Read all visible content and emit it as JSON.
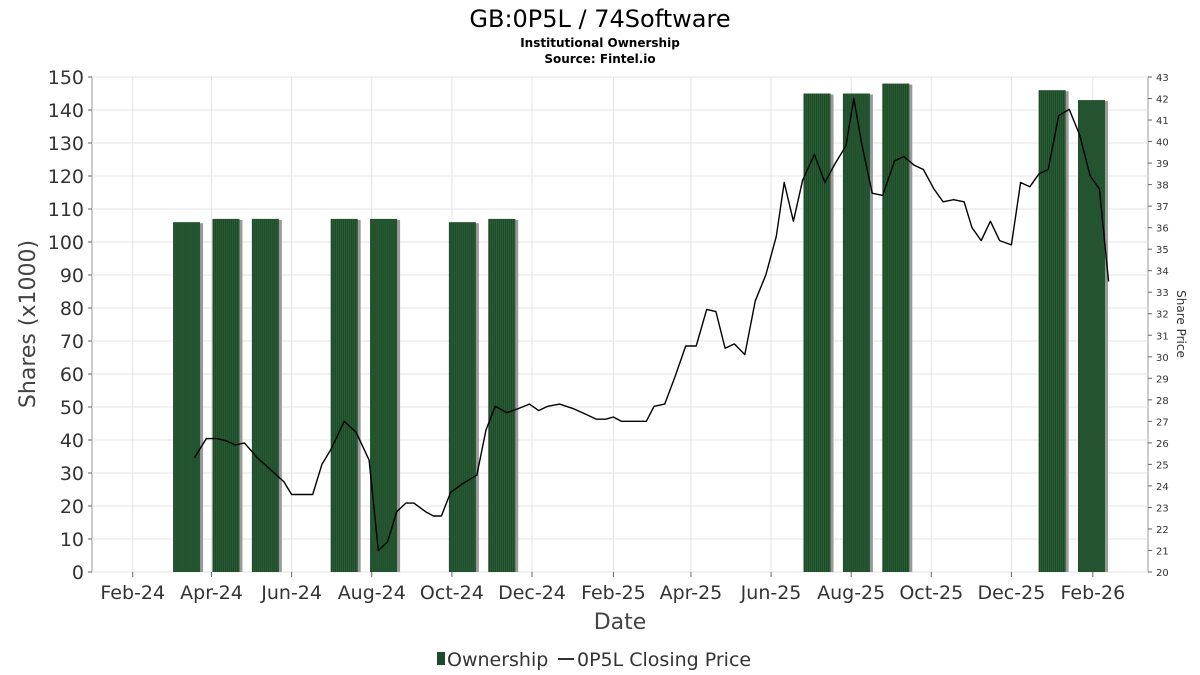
{
  "chart_data": {
    "type": "bar",
    "title": "GB:0P5L / 74Software",
    "subtitle_lines": [
      "Institutional Ownership",
      "Source: Fintel.io"
    ],
    "xlabel": "Date",
    "ylabel": "Shares (x1000)",
    "y2label": "Share Price",
    "ylim": [
      0,
      150
    ],
    "y2lim": [
      20,
      43
    ],
    "grid": true,
    "legend_position": "bottom",
    "x_tick_labels": [
      {
        "label": "Feb-24",
        "date": "2024-02-01"
      },
      {
        "label": "Apr-24",
        "date": "2024-04-01"
      },
      {
        "label": "Jun-24",
        "date": "2024-06-01"
      },
      {
        "label": "Aug-24",
        "date": "2024-08-01"
      },
      {
        "label": "Oct-24",
        "date": "2024-10-01"
      },
      {
        "label": "Dec-24",
        "date": "2024-12-01"
      },
      {
        "label": "Feb-25",
        "date": "2025-02-01"
      },
      {
        "label": "Apr-25",
        "date": "2025-04-01"
      },
      {
        "label": "Jun-25",
        "date": "2025-06-01"
      },
      {
        "label": "Aug-25",
        "date": "2025-08-01"
      },
      {
        "label": "Oct-25",
        "date": "2025-10-01"
      },
      {
        "label": "Dec-25",
        "date": "2025-12-01"
      },
      {
        "label": "Feb-26",
        "date": "2026-02-01"
      }
    ],
    "y_ticks": [
      0,
      10,
      20,
      30,
      40,
      50,
      60,
      70,
      80,
      90,
      100,
      110,
      120,
      130,
      140,
      150
    ],
    "y2_ticks": [
      20,
      21,
      22,
      23,
      24,
      25,
      26,
      27,
      28,
      29,
      30,
      31,
      32,
      33,
      34,
      35,
      36,
      37,
      38,
      39,
      40,
      41,
      42,
      43
    ],
    "series": [
      {
        "name": "Ownership",
        "type": "bar",
        "color": "#1f4a2a",
        "points": [
          {
            "date": "2024-03-13",
            "value": 106
          },
          {
            "date": "2024-04-12",
            "value": 107
          },
          {
            "date": "2024-05-12",
            "value": 107
          },
          {
            "date": "2024-07-11",
            "value": 107
          },
          {
            "date": "2024-08-10",
            "value": 107
          },
          {
            "date": "2024-10-09",
            "value": 106
          },
          {
            "date": "2024-11-08",
            "value": 107
          },
          {
            "date": "2025-07-06",
            "value": 145
          },
          {
            "date": "2025-08-05",
            "value": 145
          },
          {
            "date": "2025-09-04",
            "value": 148
          },
          {
            "date": "2026-01-01",
            "value": 146
          },
          {
            "date": "2026-01-31",
            "value": 143
          }
        ]
      },
      {
        "name": "0P5L Closing Price",
        "type": "line",
        "color": "#000000",
        "points": [
          {
            "date": "2024-03-19",
            "value": 25.3
          },
          {
            "date": "2024-03-28",
            "value": 26.2
          },
          {
            "date": "2024-04-05",
            "value": 26.2
          },
          {
            "date": "2024-04-12",
            "value": 26.1
          },
          {
            "date": "2024-04-19",
            "value": 25.9
          },
          {
            "date": "2024-04-26",
            "value": 26.0
          },
          {
            "date": "2024-05-06",
            "value": 25.3
          },
          {
            "date": "2024-05-17",
            "value": 24.7
          },
          {
            "date": "2024-05-26",
            "value": 24.2
          },
          {
            "date": "2024-06-01",
            "value": 23.6
          },
          {
            "date": "2024-06-15",
            "value": 23.6
          },
          {
            "date": "2024-06-17",
            "value": 23.6
          },
          {
            "date": "2024-06-24",
            "value": 25.0
          },
          {
            "date": "2024-07-01",
            "value": 25.7
          },
          {
            "date": "2024-07-11",
            "value": 27.0
          },
          {
            "date": "2024-07-20",
            "value": 26.5
          },
          {
            "date": "2024-07-30",
            "value": 25.2
          },
          {
            "date": "2024-08-06",
            "value": 21.0
          },
          {
            "date": "2024-08-13",
            "value": 21.4
          },
          {
            "date": "2024-08-20",
            "value": 22.8
          },
          {
            "date": "2024-08-27",
            "value": 23.2
          },
          {
            "date": "2024-09-02",
            "value": 23.2
          },
          {
            "date": "2024-09-11",
            "value": 22.8
          },
          {
            "date": "2024-09-17",
            "value": 22.6
          },
          {
            "date": "2024-09-23",
            "value": 22.6
          },
          {
            "date": "2024-09-30",
            "value": 23.7
          },
          {
            "date": "2024-10-09",
            "value": 24.1
          },
          {
            "date": "2024-10-20",
            "value": 24.5
          },
          {
            "date": "2024-10-27",
            "value": 26.6
          },
          {
            "date": "2024-11-03",
            "value": 27.7
          },
          {
            "date": "2024-11-12",
            "value": 27.4
          },
          {
            "date": "2024-11-21",
            "value": 27.6
          },
          {
            "date": "2024-11-29",
            "value": 27.8
          },
          {
            "date": "2024-12-06",
            "value": 27.5
          },
          {
            "date": "2024-12-13",
            "value": 27.7
          },
          {
            "date": "2024-12-22",
            "value": 27.8
          },
          {
            "date": "2025-01-01",
            "value": 27.6
          },
          {
            "date": "2025-01-12",
            "value": 27.3
          },
          {
            "date": "2025-01-19",
            "value": 27.1
          },
          {
            "date": "2025-01-26",
            "value": 27.1
          },
          {
            "date": "2025-02-01",
            "value": 27.2
          },
          {
            "date": "2025-02-07",
            "value": 27.0
          },
          {
            "date": "2025-02-15",
            "value": 27.0
          },
          {
            "date": "2025-02-26",
            "value": 27.0
          },
          {
            "date": "2025-03-04",
            "value": 27.7
          },
          {
            "date": "2025-03-12",
            "value": 27.8
          },
          {
            "date": "2025-03-20",
            "value": 29.1
          },
          {
            "date": "2025-03-28",
            "value": 30.5
          },
          {
            "date": "2025-04-05",
            "value": 30.5
          },
          {
            "date": "2025-04-13",
            "value": 32.2
          },
          {
            "date": "2025-04-20",
            "value": 32.1
          },
          {
            "date": "2025-04-27",
            "value": 30.4
          },
          {
            "date": "2025-05-04",
            "value": 30.6
          },
          {
            "date": "2025-05-12",
            "value": 30.1
          },
          {
            "date": "2025-05-20",
            "value": 32.6
          },
          {
            "date": "2025-05-28",
            "value": 33.8
          },
          {
            "date": "2025-06-05",
            "value": 35.6
          },
          {
            "date": "2025-06-11",
            "value": 38.1
          },
          {
            "date": "2025-06-18",
            "value": 36.3
          },
          {
            "date": "2025-06-25",
            "value": 38.2
          },
          {
            "date": "2025-07-04",
            "value": 39.4
          },
          {
            "date": "2025-07-12",
            "value": 38.1
          },
          {
            "date": "2025-07-20",
            "value": 39.0
          },
          {
            "date": "2025-07-28",
            "value": 39.8
          },
          {
            "date": "2025-08-03",
            "value": 42.0
          },
          {
            "date": "2025-08-09",
            "value": 39.9
          },
          {
            "date": "2025-08-17",
            "value": 37.6
          },
          {
            "date": "2025-08-25",
            "value": 37.5
          },
          {
            "date": "2025-09-03",
            "value": 39.1
          },
          {
            "date": "2025-09-10",
            "value": 39.3
          },
          {
            "date": "2025-09-18",
            "value": 38.9
          },
          {
            "date": "2025-09-25",
            "value": 38.7
          },
          {
            "date": "2025-10-03",
            "value": 37.8
          },
          {
            "date": "2025-10-10",
            "value": 37.2
          },
          {
            "date": "2025-10-18",
            "value": 37.3
          },
          {
            "date": "2025-10-26",
            "value": 37.2
          },
          {
            "date": "2025-11-01",
            "value": 36.0
          },
          {
            "date": "2025-11-08",
            "value": 35.4
          },
          {
            "date": "2025-11-15",
            "value": 36.3
          },
          {
            "date": "2025-11-22",
            "value": 35.4
          },
          {
            "date": "2025-12-01",
            "value": 35.2
          },
          {
            "date": "2025-12-08",
            "value": 38.1
          },
          {
            "date": "2025-12-15",
            "value": 37.9
          },
          {
            "date": "2025-12-22",
            "value": 38.5
          },
          {
            "date": "2025-12-29",
            "value": 38.7
          },
          {
            "date": "2026-01-06",
            "value": 41.2
          },
          {
            "date": "2026-01-14",
            "value": 41.5
          },
          {
            "date": "2026-01-22",
            "value": 40.3
          },
          {
            "date": "2026-01-30",
            "value": 38.4
          },
          {
            "date": "2026-02-06",
            "value": 37.8
          },
          {
            "date": "2026-02-13",
            "value": 33.5
          }
        ]
      }
    ]
  }
}
